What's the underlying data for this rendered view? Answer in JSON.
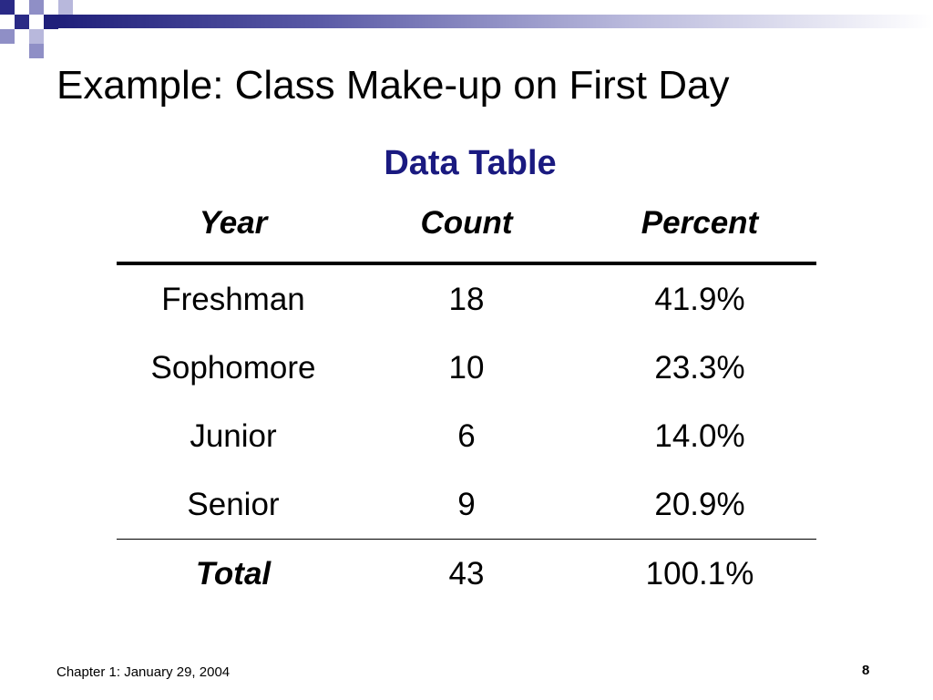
{
  "slide": {
    "title": "Example: Class Make-up on First Day",
    "subtitle": "Data Table",
    "accent_color": "#1a1a80",
    "header_bar_colors": [
      "#1f1f7a",
      "#ffffff"
    ]
  },
  "table": {
    "headers": [
      "Year",
      "Count",
      "Percent"
    ],
    "rows": [
      [
        "Freshman",
        "18",
        "41.9%"
      ],
      [
        "Sophomore",
        "10",
        "23.3%"
      ],
      [
        "Junior",
        "6",
        "14.0%"
      ],
      [
        "Senior",
        "9",
        "20.9%"
      ]
    ],
    "total": [
      "Total",
      "43",
      "100.1%"
    ]
  },
  "footer": {
    "left_text": "Chapter 1: January 29, 2004",
    "page_number": "8"
  }
}
